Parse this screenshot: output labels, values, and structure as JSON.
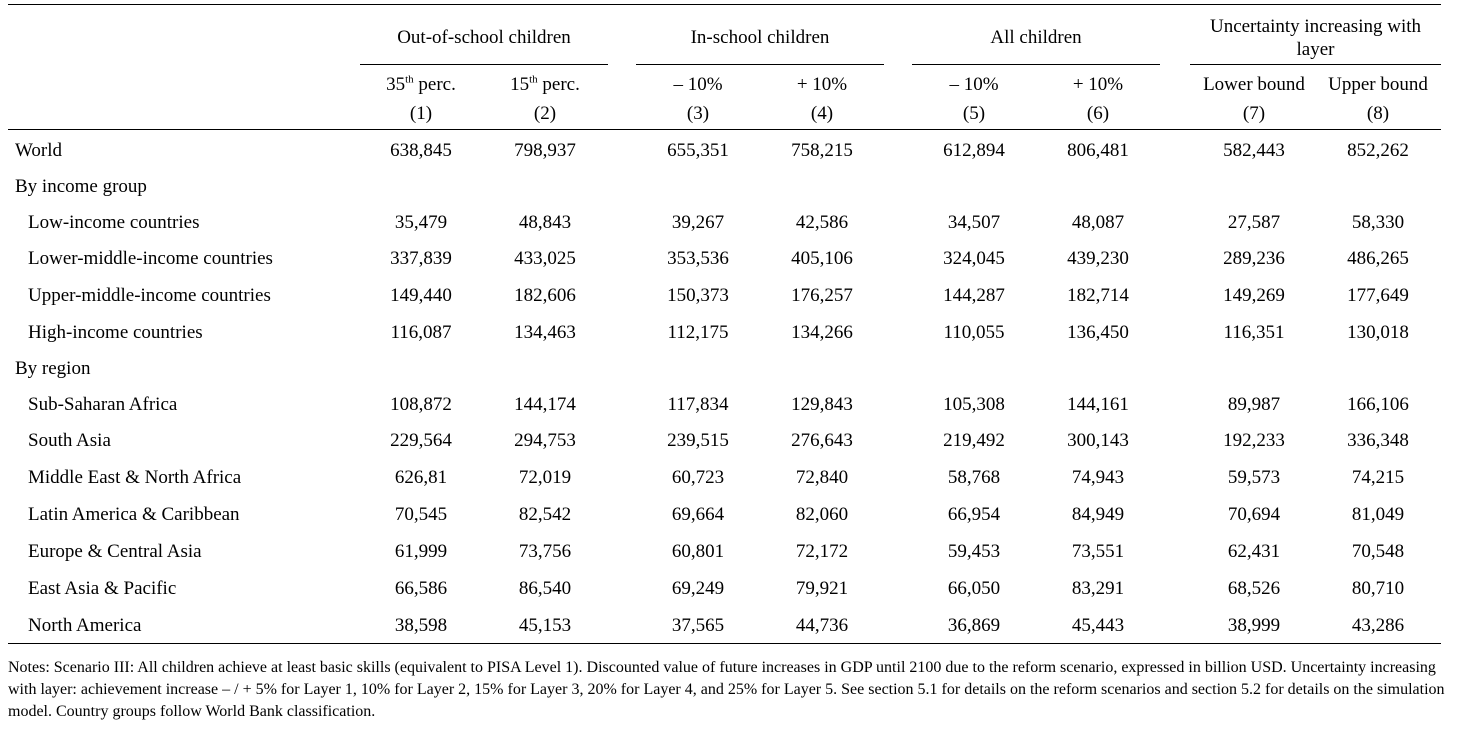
{
  "groups": [
    {
      "label": "Out-of-school children"
    },
    {
      "label": "In-school children"
    },
    {
      "label": "All children"
    },
    {
      "label": "Uncertainty increasing with layer"
    }
  ],
  "columns": [
    {
      "main": "35",
      "sup": "th",
      "rest": " perc.",
      "num": "(1)"
    },
    {
      "main": "15",
      "sup": "th",
      "rest": " perc.",
      "num": "(2)"
    },
    {
      "main": "– 10%",
      "sup": "",
      "rest": "",
      "num": "(3)"
    },
    {
      "main": "+ 10%",
      "sup": "",
      "rest": "",
      "num": "(4)"
    },
    {
      "main": "– 10%",
      "sup": "",
      "rest": "",
      "num": "(5)"
    },
    {
      "main": "+ 10%",
      "sup": "",
      "rest": "",
      "num": "(6)"
    },
    {
      "main": "Lower bound",
      "sup": "",
      "rest": "",
      "num": "(7)"
    },
    {
      "main": "Upper bound",
      "sup": "",
      "rest": "",
      "num": "(8)"
    }
  ],
  "rows": [
    {
      "label": "World",
      "indent": false,
      "values": [
        "638,845",
        "798,937",
        "655,351",
        "758,215",
        "612,894",
        "806,481",
        "582,443",
        "852,262"
      ]
    },
    {
      "label": "By income group",
      "indent": false,
      "values": []
    },
    {
      "label": "Low-income countries",
      "indent": true,
      "values": [
        "35,479",
        "48,843",
        "39,267",
        "42,586",
        "34,507",
        "48,087",
        "27,587",
        "58,330"
      ]
    },
    {
      "label": "Lower-middle-income countries",
      "indent": true,
      "values": [
        "337,839",
        "433,025",
        "353,536",
        "405,106",
        "324,045",
        "439,230",
        "289,236",
        "486,265"
      ]
    },
    {
      "label": "Upper-middle-income countries",
      "indent": true,
      "values": [
        "149,440",
        "182,606",
        "150,373",
        "176,257",
        "144,287",
        "182,714",
        "149,269",
        "177,649"
      ]
    },
    {
      "label": "High-income countries",
      "indent": true,
      "values": [
        "116,087",
        "134,463",
        "112,175",
        "134,266",
        "110,055",
        "136,450",
        "116,351",
        "130,018"
      ]
    },
    {
      "label": "By region",
      "indent": false,
      "values": []
    },
    {
      "label": "Sub-Saharan Africa",
      "indent": true,
      "values": [
        "108,872",
        "144,174",
        "117,834",
        "129,843",
        "105,308",
        "144,161",
        "89,987",
        "166,106"
      ]
    },
    {
      "label": "South Asia",
      "indent": true,
      "values": [
        "229,564",
        "294,753",
        "239,515",
        "276,643",
        "219,492",
        "300,143",
        "192,233",
        "336,348"
      ]
    },
    {
      "label": "Middle East & North Africa",
      "indent": true,
      "values": [
        "626,81",
        "72,019",
        "60,723",
        "72,840",
        "58,768",
        "74,943",
        "59,573",
        "74,215"
      ]
    },
    {
      "label": "Latin America & Caribbean",
      "indent": true,
      "values": [
        "70,545",
        "82,542",
        "69,664",
        "82,060",
        "66,954",
        "84,949",
        "70,694",
        "81,049"
      ]
    },
    {
      "label": "Europe & Central Asia",
      "indent": true,
      "values": [
        "61,999",
        "73,756",
        "60,801",
        "72,172",
        "59,453",
        "73,551",
        "62,431",
        "70,548"
      ]
    },
    {
      "label": "East Asia & Pacific",
      "indent": true,
      "values": [
        "66,586",
        "86,540",
        "69,249",
        "79,921",
        "66,050",
        "83,291",
        "68,526",
        "80,710"
      ]
    },
    {
      "label": "North America",
      "indent": true,
      "values": [
        "38,598",
        "45,153",
        "37,565",
        "44,736",
        "36,869",
        "45,443",
        "38,999",
        "43,286"
      ]
    }
  ],
  "notes": "Notes: Scenario III: All children achieve at least basic skills (equivalent to PISA Level 1). Discounted value of future increases in GDP until 2100 due to the reform scenario, expressed in billion USD. Uncertainty increasing with layer: achievement increase – / + 5% for Layer 1, 10% for Layer 2, 15% for Layer 3, 20% for Layer 4, and 25% for Layer 5. See section 5.1 for details on the reform scenarios and section 5.2 for details on the simulation model. Country groups follow World Bank classification."
}
